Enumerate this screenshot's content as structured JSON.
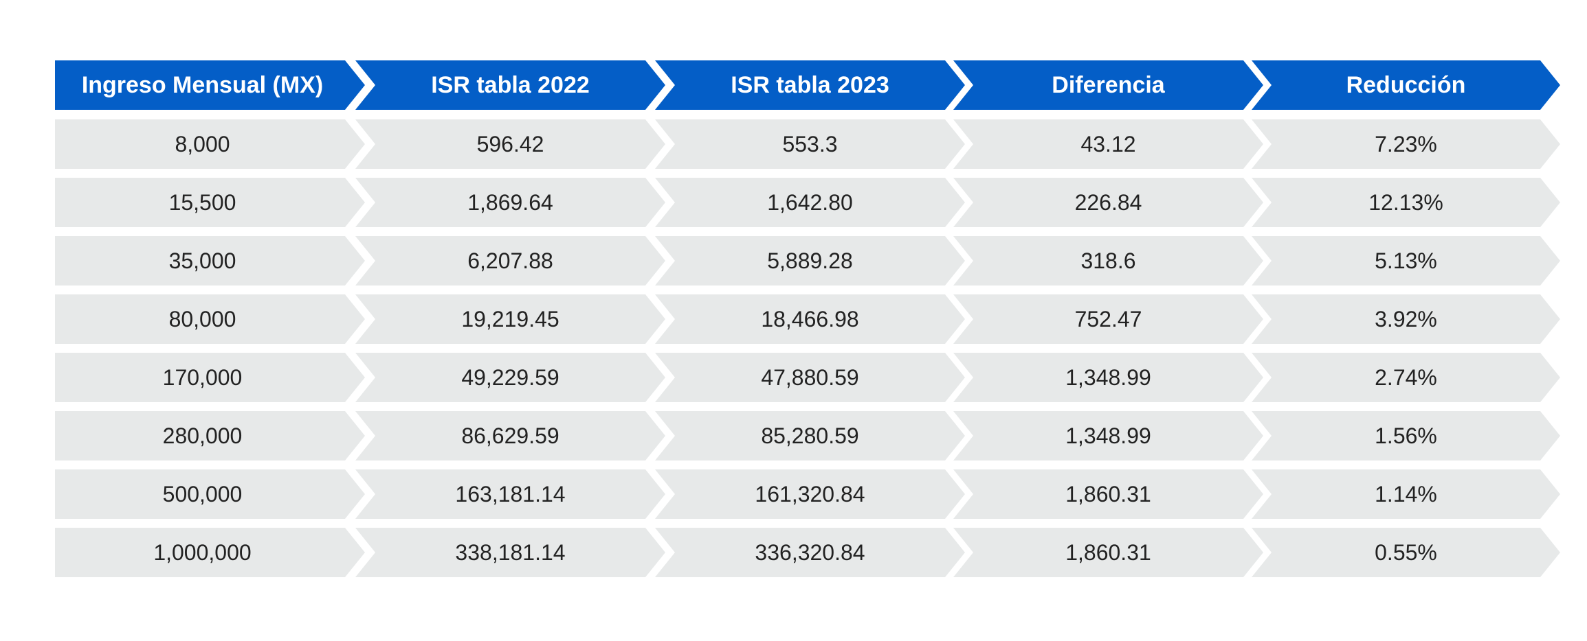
{
  "chart_data": {
    "type": "table",
    "columns": [
      "Ingreso Mensual (MX)",
      "ISR tabla 2022",
      "ISR tabla 2023",
      "Diferencia",
      "Reducción"
    ],
    "rows": [
      [
        "8,000",
        "596.42",
        "553.3",
        "43.12",
        "7.23%"
      ],
      [
        "15,500",
        "1,869.64",
        "1,642.80",
        "226.84",
        "12.13%"
      ],
      [
        "35,000",
        "6,207.88",
        "5,889.28",
        "318.6",
        "5.13%"
      ],
      [
        "80,000",
        "19,219.45",
        "18,466.98",
        "752.47",
        "3.92%"
      ],
      [
        "170,000",
        "49,229.59",
        "47,880.59",
        "1,348.99",
        "2.74%"
      ],
      [
        "280,000",
        "86,629.59",
        "85,280.59",
        "1,348.99",
        "1.56%"
      ],
      [
        "500,000",
        "163,181.14",
        "161,320.84",
        "1,860.31",
        "1.14%"
      ],
      [
        "1,000,000",
        "338,181.14",
        "336,320.84",
        "1,860.31",
        "0.55%"
      ]
    ],
    "colors": {
      "header_bg": "#045ec7",
      "header_text": "#ffffff",
      "row_bg": "#e7e9e9",
      "row_text": "#222222"
    }
  }
}
